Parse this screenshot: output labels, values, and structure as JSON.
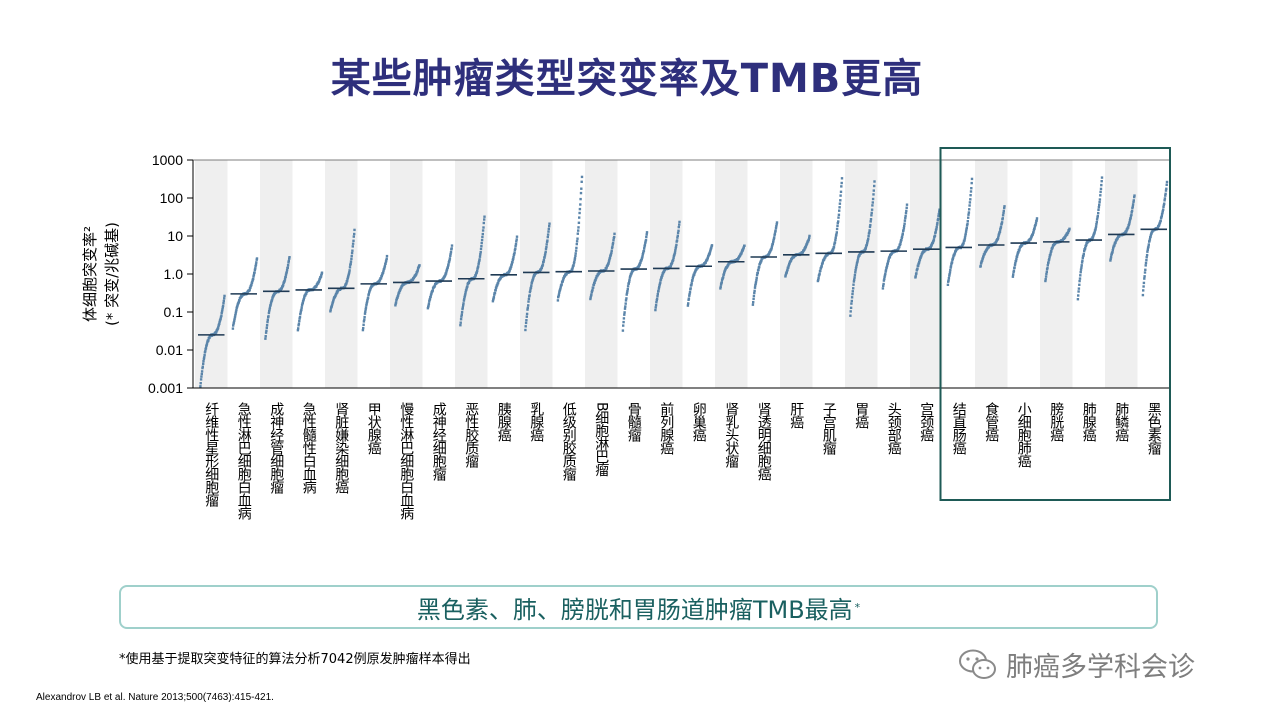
{
  "slide": {
    "title": "某些肿瘤类型突变率及TMB更高",
    "callout": "黑色素、肺、膀胱和胃肠道肿瘤TMB最高",
    "callout_sup": "*",
    "footnote": "*使用基于提取突变特征的算法分析7042例原发肿瘤样本得出",
    "reference": "Alexandrov LB et al. Nature 2013;500(7463):415-421.",
    "watermark": "肺癌多学科会诊"
  },
  "colors": {
    "title": "#2e2f7c",
    "points": "#5b85aa",
    "median": "#1f3a54",
    "band": "#efefef",
    "highlight_box": "#1e5a56",
    "callout_border": "#9fd0cb",
    "callout_text": "#1a6060"
  },
  "chart_data": {
    "type": "scatter",
    "ylabel": "体细胞突变率²",
    "ylabel2": "(* 突变/兆碱基)",
    "yscale": "log",
    "ylim": [
      0.001,
      1000
    ],
    "yticks": [
      "0.001",
      "0.01",
      "0.1",
      "1.0",
      "10",
      "100",
      "1000"
    ],
    "yticks_values": [
      0.001,
      0.01,
      0.1,
      1,
      10,
      100,
      1000
    ],
    "grid": false,
    "alternating_bands": true,
    "highlighted_categories": [
      "结直肠癌",
      "食管癌",
      "小细胞肺癌",
      "膀胱癌",
      "肺腺癌",
      "肺鳞癌",
      "黑色素瘤"
    ],
    "categories": [
      "纤维性星形细胞瘤",
      "急性淋巴细胞白血病",
      "成神经管细胞瘤",
      "急性髓性白血病",
      "肾脏嫌染细胞癌",
      "甲状腺癌",
      "慢性淋巴细胞白血病",
      "成神经细胞瘤",
      "恶性胶质瘤",
      "胰腺癌",
      "乳腺癌",
      "低级别胶质瘤",
      "B细胞淋巴瘤",
      "骨髓瘤",
      "前列腺癌",
      "卵巢癌",
      "肾乳头状瘤",
      "肾透明细胞癌",
      "肝癌",
      "子宫肌瘤",
      "胃癌",
      "头颈部癌",
      "宫颈癌",
      "结直肠癌",
      "食管癌",
      "小细胞肺癌",
      "膀胱癌",
      "肺腺癌",
      "肺鳞癌",
      "黑色素瘤"
    ],
    "medians": [
      0.025,
      0.3,
      0.35,
      0.38,
      0.42,
      0.55,
      0.6,
      0.65,
      0.75,
      0.95,
      1.1,
      1.15,
      1.2,
      1.35,
      1.4,
      1.6,
      2.1,
      2.8,
      3.2,
      3.5,
      3.8,
      4.0,
      4.5,
      5.0,
      5.8,
      6.5,
      7.0,
      7.8,
      11,
      15
    ],
    "ranges": [
      [
        0.001,
        0.28
      ],
      [
        0.035,
        2.8
      ],
      [
        0.018,
        3.0
      ],
      [
        0.03,
        1.1
      ],
      [
        0.1,
        16
      ],
      [
        0.03,
        3.0
      ],
      [
        0.15,
        1.8
      ],
      [
        0.12,
        6.0
      ],
      [
        0.04,
        38
      ],
      [
        0.18,
        10
      ],
      [
        0.03,
        24
      ],
      [
        0.2,
        450
      ],
      [
        0.2,
        12
      ],
      [
        0.03,
        13
      ],
      [
        0.1,
        26
      ],
      [
        0.14,
        6
      ],
      [
        0.4,
        6
      ],
      [
        0.14,
        25
      ],
      [
        0.8,
        10
      ],
      [
        0.6,
        400
      ],
      [
        0.07,
        300
      ],
      [
        0.4,
        70
      ],
      [
        0.75,
        55
      ],
      [
        0.5,
        350
      ],
      [
        1.5,
        65
      ],
      [
        0.8,
        30
      ],
      [
        0.6,
        16
      ],
      [
        0.2,
        400
      ],
      [
        2.2,
        130
      ],
      [
        0.25,
        280
      ]
    ]
  }
}
